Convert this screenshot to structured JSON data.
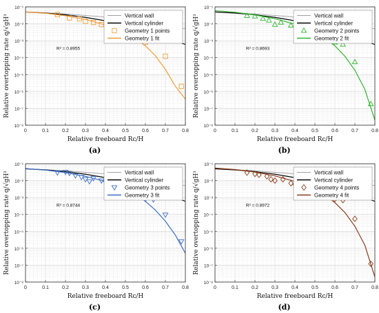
{
  "x_label": "Relative freeboard Rᴄ/H",
  "y_label": "Relative overtopping rate q/√gH³",
  "chart_data": [
    {
      "panel_label": "(a)",
      "type": "line",
      "xlim": [
        0,
        0.8
      ],
      "ylim_log10": [
        -8,
        -1
      ],
      "x_ticks": [
        "0",
        "0.1",
        "0.2",
        "0.3",
        "0.4",
        "0.5",
        "0.6",
        "0.7",
        "0.8"
      ],
      "y_ticks": [
        "10⁻⁸",
        "10⁻⁷",
        "10⁻⁶",
        "10⁻⁵",
        "10⁻⁴",
        "10⁻³",
        "10⁻²",
        "10⁻¹"
      ],
      "grid": true,
      "legend_position": "top-right",
      "r2_text": "R² = 0.8955",
      "series": [
        {
          "name": "Vertical wall",
          "color": "#a0a0a0",
          "style": "line",
          "x": [
            0,
            0.1,
            0.2,
            0.3,
            0.4,
            0.5,
            0.6,
            0.7,
            0.8
          ],
          "y": [
            0.05,
            0.045,
            0.038,
            0.031,
            0.025,
            0.019,
            0.014,
            0.009,
            0.005
          ]
        },
        {
          "name": "Vertical cylinder",
          "color": "#000000",
          "style": "line",
          "x": [
            0,
            0.1,
            0.2,
            0.3,
            0.4,
            0.5,
            0.6,
            0.7,
            0.8
          ],
          "y": [
            0.05,
            0.043,
            0.034,
            0.024,
            0.015,
            0.008,
            0.0037,
            0.0015,
            0.0006
          ]
        },
        {
          "name": "Geometry 1 points",
          "color": "#f29b38",
          "style": "marker",
          "marker": "square",
          "x": [
            0.16,
            0.22,
            0.27,
            0.3,
            0.34,
            0.38,
            0.42,
            0.44,
            0.48,
            0.5,
            0.55,
            0.58,
            0.6,
            0.64,
            0.7,
            0.78
          ],
          "y": [
            0.035,
            0.022,
            0.02,
            0.014,
            0.012,
            0.009,
            0.0065,
            0.005,
            0.0032,
            0.0022,
            0.0035,
            0.0025,
            0.0008,
            0.001,
            0.00012,
            2e-06
          ]
        },
        {
          "name": "Geometry 1 fit",
          "color": "#f29b38",
          "style": "line",
          "x": [
            0,
            0.1,
            0.2,
            0.3,
            0.4,
            0.5,
            0.55,
            0.6,
            0.65,
            0.7,
            0.75,
            0.8
          ],
          "y": [
            0.05,
            0.042,
            0.03,
            0.018,
            0.0085,
            0.0028,
            0.0013,
            0.0005,
            0.00013,
            2e-05,
            2e-06,
            3.5e-07
          ]
        }
      ]
    },
    {
      "panel_label": "(b)",
      "type": "line",
      "xlim": [
        0,
        0.8
      ],
      "ylim_log10": [
        -8,
        -1
      ],
      "x_ticks": [
        "0",
        "0.1",
        "0.2",
        "0.3",
        "0.4",
        "0.5",
        "0.6",
        "0.7",
        "0.8"
      ],
      "y_ticks": [
        "10⁻⁸",
        "10⁻⁷",
        "10⁻⁶",
        "10⁻⁵",
        "10⁻⁴",
        "10⁻³",
        "10⁻²",
        "10⁻¹"
      ],
      "grid": true,
      "legend_position": "top-right",
      "r2_text": "R² = 0.8693",
      "series": [
        {
          "name": "Vertical wall",
          "color": "#a0a0a0",
          "style": "line",
          "x": [
            0,
            0.1,
            0.2,
            0.3,
            0.4,
            0.5,
            0.6,
            0.7,
            0.8
          ],
          "y": [
            0.05,
            0.045,
            0.038,
            0.031,
            0.025,
            0.019,
            0.014,
            0.009,
            0.005
          ]
        },
        {
          "name": "Vertical cylinder",
          "color": "#000000",
          "style": "line",
          "x": [
            0,
            0.1,
            0.2,
            0.3,
            0.4,
            0.5,
            0.6,
            0.7,
            0.8
          ],
          "y": [
            0.05,
            0.043,
            0.034,
            0.024,
            0.015,
            0.008,
            0.0037,
            0.0015,
            0.0006
          ]
        },
        {
          "name": "Geometry 2 points",
          "color": "#2bb52b",
          "style": "marker",
          "marker": "triangle-up",
          "x": [
            0.16,
            0.2,
            0.24,
            0.27,
            0.3,
            0.33,
            0.38,
            0.42,
            0.44,
            0.48,
            0.5,
            0.53,
            0.55,
            0.58,
            0.6,
            0.64,
            0.7,
            0.78
          ],
          "y": [
            0.03,
            0.028,
            0.02,
            0.016,
            0.009,
            0.012,
            0.008,
            0.006,
            0.004,
            0.005,
            0.004,
            0.0035,
            0.0025,
            0.0022,
            0.0008,
            0.0006,
            5.5e-05,
            1.8e-07
          ]
        },
        {
          "name": "Geometry 2 fit",
          "color": "#2bb52b",
          "style": "line",
          "x": [
            0,
            0.1,
            0.2,
            0.3,
            0.4,
            0.5,
            0.55,
            0.6,
            0.65,
            0.7,
            0.75,
            0.8
          ],
          "y": [
            0.06,
            0.048,
            0.033,
            0.02,
            0.0095,
            0.0032,
            0.0014,
            0.0005,
            0.00012,
            1.8e-05,
            1.3e-06,
            2e-08
          ]
        }
      ]
    },
    {
      "panel_label": "(c)",
      "type": "line",
      "xlim": [
        0,
        0.8
      ],
      "ylim_log10": [
        -8,
        -1
      ],
      "x_ticks": [
        "0",
        "0.1",
        "0.2",
        "0.3",
        "0.4",
        "0.5",
        "0.6",
        "0.7",
        "0.8"
      ],
      "y_ticks": [
        "10⁻⁸",
        "10⁻⁷",
        "10⁻⁶",
        "10⁻⁵",
        "10⁻⁴",
        "10⁻³",
        "10⁻²",
        "10⁻¹"
      ],
      "grid": true,
      "legend_position": "top-right",
      "r2_text": "R² = 0.8744",
      "series": [
        {
          "name": "Vertical wall",
          "color": "#a0a0a0",
          "style": "line",
          "x": [
            0,
            0.1,
            0.2,
            0.3,
            0.4,
            0.5,
            0.6,
            0.7,
            0.8
          ],
          "y": [
            0.05,
            0.045,
            0.038,
            0.031,
            0.025,
            0.019,
            0.014,
            0.009,
            0.005
          ]
        },
        {
          "name": "Vertical cylinder",
          "color": "#000000",
          "style": "line",
          "x": [
            0,
            0.1,
            0.2,
            0.3,
            0.4,
            0.5,
            0.6,
            0.7,
            0.8
          ],
          "y": [
            0.05,
            0.043,
            0.034,
            0.024,
            0.015,
            0.008,
            0.0037,
            0.0015,
            0.0006
          ]
        },
        {
          "name": "Geometry 3 points",
          "color": "#3d6fc4",
          "style": "marker",
          "marker": "triangle-down",
          "x": [
            0.16,
            0.2,
            0.22,
            0.25,
            0.28,
            0.3,
            0.32,
            0.34,
            0.38,
            0.4,
            0.44,
            0.48,
            0.5,
            0.52,
            0.55,
            0.58,
            0.6,
            0.64,
            0.7,
            0.78
          ],
          "y": [
            0.03,
            0.032,
            0.028,
            0.02,
            0.016,
            0.012,
            0.009,
            0.014,
            0.01,
            0.008,
            0.006,
            0.0045,
            0.0022,
            0.003,
            0.0025,
            0.002,
            0.0008,
            0.00075,
            9.5e-05,
            2.5e-06
          ]
        },
        {
          "name": "Geometry 3 fit",
          "color": "#3d6fc4",
          "style": "line",
          "x": [
            0,
            0.1,
            0.2,
            0.3,
            0.4,
            0.5,
            0.55,
            0.6,
            0.65,
            0.7,
            0.75,
            0.8
          ],
          "y": [
            0.052,
            0.042,
            0.03,
            0.018,
            0.009,
            0.0032,
            0.0016,
            0.0006,
            0.00018,
            4e-05,
            6e-06,
            5e-07
          ]
        }
      ]
    },
    {
      "panel_label": "(d)",
      "type": "line",
      "xlim": [
        0,
        0.8
      ],
      "ylim_log10": [
        -8,
        -1
      ],
      "x_ticks": [
        "0",
        "0.1",
        "0.2",
        "0.3",
        "0.4",
        "0.5",
        "0.6",
        "0.7",
        "0.8"
      ],
      "y_ticks": [
        "10⁻⁸",
        "10⁻⁷",
        "10⁻⁶",
        "10⁻⁵",
        "10⁻⁴",
        "10⁻³",
        "10⁻²",
        "10⁻¹"
      ],
      "grid": true,
      "legend_position": "top-right",
      "r2_text": "R² = 0.8972",
      "series": [
        {
          "name": "Vertical wall",
          "color": "#a0a0a0",
          "style": "line",
          "x": [
            0,
            0.1,
            0.2,
            0.3,
            0.4,
            0.5,
            0.6,
            0.7,
            0.8
          ],
          "y": [
            0.05,
            0.045,
            0.038,
            0.031,
            0.025,
            0.019,
            0.014,
            0.009,
            0.005
          ]
        },
        {
          "name": "Vertical cylinder",
          "color": "#000000",
          "style": "line",
          "x": [
            0,
            0.1,
            0.2,
            0.3,
            0.4,
            0.5,
            0.6,
            0.7,
            0.8
          ],
          "y": [
            0.05,
            0.043,
            0.034,
            0.024,
            0.015,
            0.008,
            0.0037,
            0.0015,
            0.0006
          ]
        },
        {
          "name": "Geometry 4 points",
          "color": "#8b3a1a",
          "style": "marker",
          "marker": "diamond",
          "x": [
            0.16,
            0.2,
            0.22,
            0.26,
            0.28,
            0.3,
            0.34,
            0.38,
            0.4,
            0.44,
            0.48,
            0.5,
            0.52,
            0.55,
            0.58,
            0.6,
            0.64,
            0.7,
            0.78
          ],
          "y": [
            0.03,
            0.025,
            0.022,
            0.018,
            0.012,
            0.01,
            0.012,
            0.007,
            0.006,
            0.004,
            0.003,
            0.002,
            0.0025,
            0.002,
            0.0022,
            0.0008,
            0.0007,
            5.5e-05,
            1.2e-07
          ]
        },
        {
          "name": "Geometry 4 fit",
          "color": "#8b3a1a",
          "style": "line",
          "x": [
            0,
            0.1,
            0.2,
            0.3,
            0.4,
            0.5,
            0.55,
            0.6,
            0.65,
            0.7,
            0.75,
            0.8
          ],
          "y": [
            0.055,
            0.045,
            0.032,
            0.019,
            0.009,
            0.003,
            0.0014,
            0.0005,
            0.00013,
            2e-05,
            1.5e-06,
            2e-08
          ]
        }
      ]
    }
  ]
}
